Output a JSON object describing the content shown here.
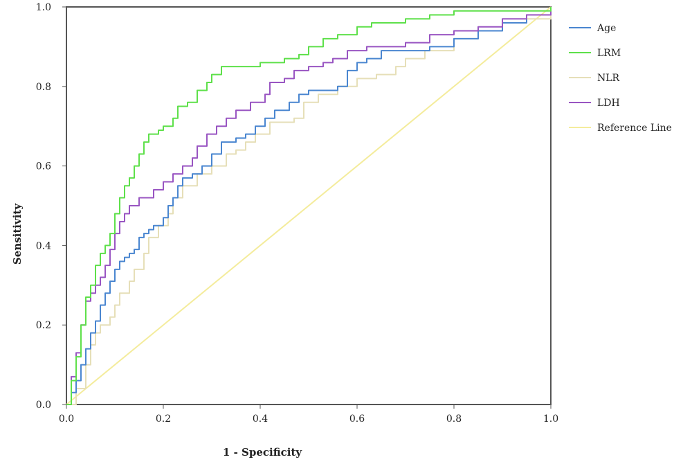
{
  "chart_data": {
    "type": "line",
    "title": "",
    "xlabel": "1 - Specificity",
    "ylabel": "Sensitivity",
    "xlim": [
      0,
      1
    ],
    "ylim": [
      0,
      1
    ],
    "xticks": [
      "0.0",
      "0.2",
      "0.4",
      "0.6",
      "0.8",
      "1.0"
    ],
    "yticks": [
      "0.0",
      "0.2",
      "0.4",
      "0.6",
      "0.8",
      "1.0"
    ],
    "grid": false,
    "legend_position": "right",
    "series": [
      {
        "name": "Age",
        "color": "#4a86d0",
        "points": [
          [
            0,
            0
          ],
          [
            0.01,
            0.03
          ],
          [
            0.02,
            0.06
          ],
          [
            0.03,
            0.1
          ],
          [
            0.04,
            0.14
          ],
          [
            0.05,
            0.18
          ],
          [
            0.06,
            0.21
          ],
          [
            0.07,
            0.25
          ],
          [
            0.08,
            0.28
          ],
          [
            0.09,
            0.31
          ],
          [
            0.1,
            0.34
          ],
          [
            0.11,
            0.36
          ],
          [
            0.12,
            0.37
          ],
          [
            0.13,
            0.38
          ],
          [
            0.14,
            0.39
          ],
          [
            0.15,
            0.42
          ],
          [
            0.16,
            0.43
          ],
          [
            0.17,
            0.44
          ],
          [
            0.18,
            0.45
          ],
          [
            0.2,
            0.47
          ],
          [
            0.21,
            0.5
          ],
          [
            0.22,
            0.52
          ],
          [
            0.23,
            0.55
          ],
          [
            0.24,
            0.57
          ],
          [
            0.26,
            0.58
          ],
          [
            0.28,
            0.6
          ],
          [
            0.3,
            0.63
          ],
          [
            0.32,
            0.66
          ],
          [
            0.35,
            0.67
          ],
          [
            0.37,
            0.68
          ],
          [
            0.39,
            0.7
          ],
          [
            0.41,
            0.72
          ],
          [
            0.43,
            0.74
          ],
          [
            0.46,
            0.76
          ],
          [
            0.48,
            0.78
          ],
          [
            0.5,
            0.79
          ],
          [
            0.53,
            0.79
          ],
          [
            0.56,
            0.8
          ],
          [
            0.58,
            0.84
          ],
          [
            0.6,
            0.86
          ],
          [
            0.62,
            0.87
          ],
          [
            0.65,
            0.89
          ],
          [
            0.7,
            0.89
          ],
          [
            0.75,
            0.9
          ],
          [
            0.8,
            0.92
          ],
          [
            0.85,
            0.94
          ],
          [
            0.9,
            0.96
          ],
          [
            0.95,
            0.98
          ],
          [
            1,
            1
          ]
        ]
      },
      {
        "name": "LRM",
        "color": "#5ee04a",
        "points": [
          [
            0,
            0
          ],
          [
            0.01,
            0.06
          ],
          [
            0.02,
            0.12
          ],
          [
            0.03,
            0.2
          ],
          [
            0.04,
            0.27
          ],
          [
            0.05,
            0.3
          ],
          [
            0.06,
            0.35
          ],
          [
            0.07,
            0.38
          ],
          [
            0.08,
            0.4
          ],
          [
            0.09,
            0.43
          ],
          [
            0.1,
            0.48
          ],
          [
            0.11,
            0.52
          ],
          [
            0.12,
            0.55
          ],
          [
            0.13,
            0.57
          ],
          [
            0.14,
            0.6
          ],
          [
            0.15,
            0.63
          ],
          [
            0.16,
            0.66
          ],
          [
            0.17,
            0.68
          ],
          [
            0.19,
            0.69
          ],
          [
            0.2,
            0.7
          ],
          [
            0.22,
            0.72
          ],
          [
            0.23,
            0.75
          ],
          [
            0.25,
            0.76
          ],
          [
            0.27,
            0.79
          ],
          [
            0.29,
            0.81
          ],
          [
            0.3,
            0.83
          ],
          [
            0.32,
            0.85
          ],
          [
            0.35,
            0.85
          ],
          [
            0.38,
            0.85
          ],
          [
            0.4,
            0.86
          ],
          [
            0.43,
            0.86
          ],
          [
            0.45,
            0.87
          ],
          [
            0.48,
            0.88
          ],
          [
            0.5,
            0.9
          ],
          [
            0.53,
            0.92
          ],
          [
            0.56,
            0.93
          ],
          [
            0.6,
            0.95
          ],
          [
            0.63,
            0.96
          ],
          [
            0.67,
            0.96
          ],
          [
            0.7,
            0.97
          ],
          [
            0.75,
            0.98
          ],
          [
            0.8,
            0.99
          ],
          [
            0.9,
            0.99
          ],
          [
            1,
            1
          ]
        ]
      },
      {
        "name": "NLR",
        "color": "#e6dfb8",
        "points": [
          [
            0,
            0
          ],
          [
            0.02,
            0.04
          ],
          [
            0.04,
            0.1
          ],
          [
            0.05,
            0.15
          ],
          [
            0.06,
            0.18
          ],
          [
            0.07,
            0.2
          ],
          [
            0.09,
            0.22
          ],
          [
            0.1,
            0.25
          ],
          [
            0.11,
            0.28
          ],
          [
            0.13,
            0.31
          ],
          [
            0.14,
            0.34
          ],
          [
            0.16,
            0.38
          ],
          [
            0.17,
            0.42
          ],
          [
            0.19,
            0.45
          ],
          [
            0.21,
            0.48
          ],
          [
            0.22,
            0.52
          ],
          [
            0.24,
            0.55
          ],
          [
            0.27,
            0.58
          ],
          [
            0.3,
            0.6
          ],
          [
            0.33,
            0.63
          ],
          [
            0.35,
            0.64
          ],
          [
            0.37,
            0.66
          ],
          [
            0.39,
            0.68
          ],
          [
            0.42,
            0.71
          ],
          [
            0.47,
            0.72
          ],
          [
            0.49,
            0.76
          ],
          [
            0.52,
            0.78
          ],
          [
            0.56,
            0.8
          ],
          [
            0.6,
            0.82
          ],
          [
            0.64,
            0.83
          ],
          [
            0.68,
            0.85
          ],
          [
            0.7,
            0.87
          ],
          [
            0.74,
            0.89
          ],
          [
            0.8,
            0.92
          ],
          [
            0.85,
            0.94
          ],
          [
            0.9,
            0.96
          ],
          [
            0.95,
            0.97
          ],
          [
            1,
            1
          ]
        ]
      },
      {
        "name": "LDH",
        "color": "#9955c2",
        "points": [
          [
            0,
            0
          ],
          [
            0.01,
            0.07
          ],
          [
            0.02,
            0.13
          ],
          [
            0.03,
            0.2
          ],
          [
            0.04,
            0.26
          ],
          [
            0.05,
            0.28
          ],
          [
            0.06,
            0.3
          ],
          [
            0.07,
            0.32
          ],
          [
            0.08,
            0.35
          ],
          [
            0.09,
            0.39
          ],
          [
            0.1,
            0.43
          ],
          [
            0.11,
            0.46
          ],
          [
            0.12,
            0.48
          ],
          [
            0.13,
            0.5
          ],
          [
            0.15,
            0.52
          ],
          [
            0.18,
            0.54
          ],
          [
            0.2,
            0.56
          ],
          [
            0.22,
            0.58
          ],
          [
            0.24,
            0.6
          ],
          [
            0.26,
            0.62
          ],
          [
            0.27,
            0.65
          ],
          [
            0.29,
            0.68
          ],
          [
            0.31,
            0.7
          ],
          [
            0.33,
            0.72
          ],
          [
            0.35,
            0.74
          ],
          [
            0.38,
            0.76
          ],
          [
            0.41,
            0.78
          ],
          [
            0.42,
            0.81
          ],
          [
            0.45,
            0.82
          ],
          [
            0.47,
            0.84
          ],
          [
            0.5,
            0.85
          ],
          [
            0.53,
            0.86
          ],
          [
            0.55,
            0.87
          ],
          [
            0.58,
            0.89
          ],
          [
            0.62,
            0.9
          ],
          [
            0.66,
            0.9
          ],
          [
            0.7,
            0.91
          ],
          [
            0.75,
            0.93
          ],
          [
            0.8,
            0.94
          ],
          [
            0.85,
            0.95
          ],
          [
            0.9,
            0.97
          ],
          [
            0.95,
            0.98
          ],
          [
            1,
            1
          ]
        ]
      },
      {
        "name": "Reference Line",
        "color": "#f4ec9c",
        "points": [
          [
            0,
            0
          ],
          [
            1,
            1
          ]
        ]
      }
    ]
  }
}
